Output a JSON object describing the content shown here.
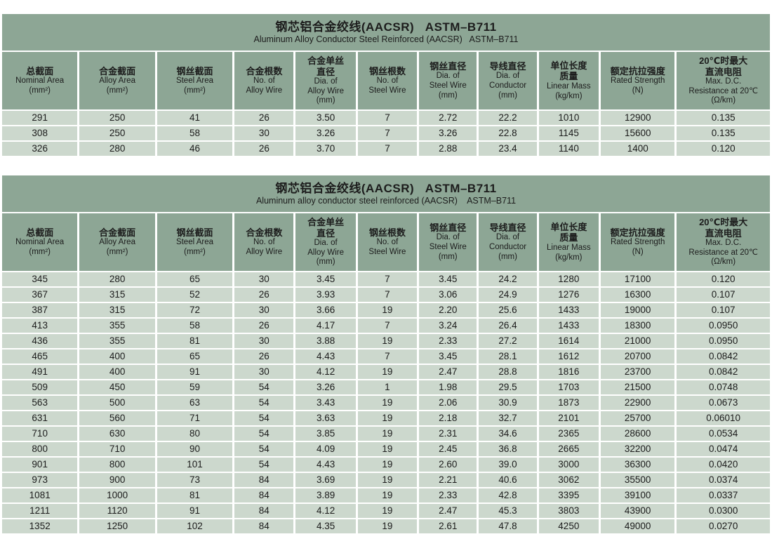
{
  "colors": {
    "header_bg": "#8da695",
    "row_bg": "#ccd8cd",
    "page_bg": "#ffffff",
    "text": "#1c1c1c"
  },
  "columns": [
    {
      "zh": [
        "总截面"
      ],
      "en": [
        "Nominal Area",
        "(mm²)"
      ]
    },
    {
      "zh": [
        "合金截面"
      ],
      "en": [
        "Alloy Area",
        "(mm²)"
      ]
    },
    {
      "zh": [
        "钢丝截面"
      ],
      "en": [
        "Steel Area",
        "(mm²)"
      ]
    },
    {
      "zh": [
        "合金根数"
      ],
      "en": [
        "No. of",
        "Alloy Wire"
      ]
    },
    {
      "zh": [
        "合金单丝",
        "直径"
      ],
      "en": [
        "Dia. of",
        "Alloy Wire",
        "(mm)"
      ]
    },
    {
      "zh": [
        "钢丝根数"
      ],
      "en": [
        "No. of",
        "Steel Wire"
      ]
    },
    {
      "zh": [
        "钢丝直径"
      ],
      "en": [
        "Dia. of",
        "Steel Wire",
        "(mm)"
      ]
    },
    {
      "zh": [
        "导线直径"
      ],
      "en": [
        "Dia. of",
        "Conductor",
        "(mm)"
      ]
    },
    {
      "zh": [
        "单位长度",
        "质量"
      ],
      "en": [
        "Linear Mass",
        "(kg/km)"
      ]
    },
    {
      "zh": [
        "额定抗拉强度"
      ],
      "en": [
        "Rated Strength",
        "(N)"
      ]
    },
    {
      "zh": [
        "20℃时最大",
        "直流电阻"
      ],
      "en": [
        "Max. D.C.",
        "Resistance at 20℃",
        "(Ω/km)"
      ]
    }
  ],
  "tables": [
    {
      "title_zh": "钢芯铝合金绞线(AACSR)   ASTM–B711",
      "title_en": "Aluminum Alloy Conductor Steel Reinforced (AACSR)   ASTM–B711",
      "rows": [
        [
          "291",
          "250",
          "41",
          "26",
          "3.50",
          "7",
          "2.72",
          "22.2",
          "1010",
          "12900",
          "0.135"
        ],
        [
          "308",
          "250",
          "58",
          "30",
          "3.26",
          "7",
          "3.26",
          "22.8",
          "1145",
          "15600",
          "0.135"
        ],
        [
          "326",
          "280",
          "46",
          "26",
          "3.70",
          "7",
          "2.88",
          "23.4",
          "1140",
          "1400",
          "0.120"
        ]
      ]
    },
    {
      "title_zh": "钢芯铝合金绞线(AACSR)   ASTM–B711",
      "title_en": "Aluminum alloy conductor steel reinforced (AACSR)    ASTM–B711",
      "rows": [
        [
          "345",
          "280",
          "65",
          "30",
          "3.45",
          "7",
          "3.45",
          "24.2",
          "1280",
          "17100",
          "0.120"
        ],
        [
          "367",
          "315",
          "52",
          "26",
          "3.93",
          "7",
          "3.06",
          "24.9",
          "1276",
          "16300",
          "0.107"
        ],
        [
          "387",
          "315",
          "72",
          "30",
          "3.66",
          "19",
          "2.20",
          "25.6",
          "1433",
          "19000",
          "0.107"
        ],
        [
          "413",
          "355",
          "58",
          "26",
          "4.17",
          "7",
          "3.24",
          "26.4",
          "1433",
          "18300",
          "0.0950"
        ],
        [
          "436",
          "355",
          "81",
          "30",
          "3.88",
          "19",
          "2.33",
          "27.2",
          "1614",
          "21000",
          "0.0950"
        ],
        [
          "465",
          "400",
          "65",
          "26",
          "4.43",
          "7",
          "3.45",
          "28.1",
          "1612",
          "20700",
          "0.0842"
        ],
        [
          "491",
          "400",
          "91",
          "30",
          "4.12",
          "19",
          "2.47",
          "28.8",
          "1816",
          "23700",
          "0.0842"
        ],
        [
          "509",
          "450",
          "59",
          "54",
          "3.26",
          "1",
          "1.98",
          "29.5",
          "1703",
          "21500",
          "0.0748"
        ],
        [
          "563",
          "500",
          "63",
          "54",
          "3.43",
          "19",
          "2.06",
          "30.9",
          "1873",
          "22900",
          "0.0673"
        ],
        [
          "631",
          "560",
          "71",
          "54",
          "3.63",
          "19",
          "2.18",
          "32.7",
          "2101",
          "25700",
          "0.06010"
        ],
        [
          "710",
          "630",
          "80",
          "54",
          "3.85",
          "19",
          "2.31",
          "34.6",
          "2365",
          "28600",
          "0.0534"
        ],
        [
          "800",
          "710",
          "90",
          "54",
          "4.09",
          "19",
          "2.45",
          "36.8",
          "2665",
          "32200",
          "0.0474"
        ],
        [
          "901",
          "800",
          "101",
          "54",
          "4.43",
          "19",
          "2.60",
          "39.0",
          "3000",
          "36300",
          "0.0420"
        ],
        [
          "973",
          "900",
          "73",
          "84",
          "3.69",
          "19",
          "2.21",
          "40.6",
          "3062",
          "35500",
          "0.0374"
        ],
        [
          "1081",
          "1000",
          "81",
          "84",
          "3.89",
          "19",
          "2.33",
          "42.8",
          "3395",
          "39100",
          "0.0337"
        ],
        [
          "1211",
          "1120",
          "91",
          "84",
          "4.12",
          "19",
          "2.47",
          "45.3",
          "3803",
          "43900",
          "0.0300"
        ],
        [
          "1352",
          "1250",
          "102",
          "84",
          "4.35",
          "19",
          "2.61",
          "47.8",
          "4250",
          "49000",
          "0.0270"
        ]
      ]
    }
  ]
}
